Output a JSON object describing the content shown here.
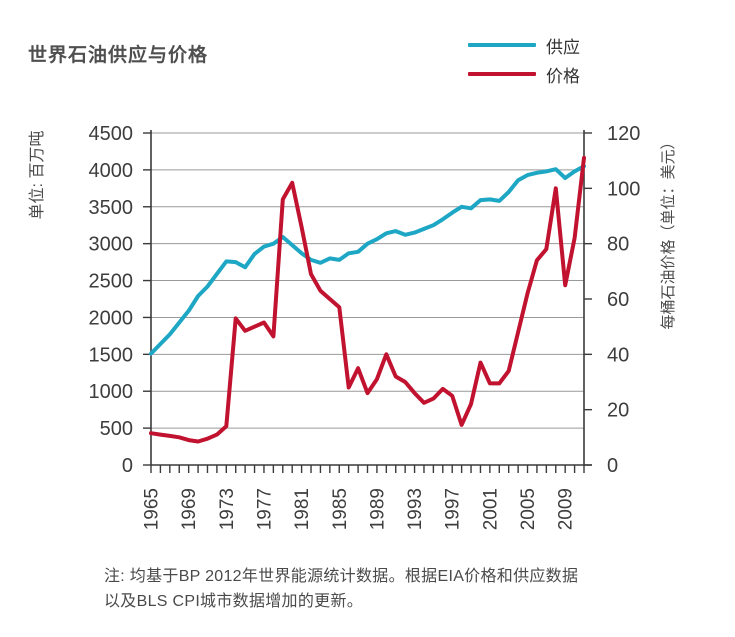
{
  "header": {
    "title": "世界石油供应与价格"
  },
  "legend": {
    "supply": {
      "label": "供应",
      "color": "#1ea7c5"
    },
    "price": {
      "label": "价格",
      "color": "#c1122f"
    }
  },
  "note": {
    "line1": "注: 均基于BP 2012年世界能源统计数据。根据EIA价格和供应数据",
    "line2": "以及BLS CPI城市数据增加的更新。"
  },
  "chart_data": {
    "type": "line",
    "title": "世界石油供应与价格",
    "x": [
      1965,
      1966,
      1967,
      1968,
      1969,
      1970,
      1971,
      1972,
      1973,
      1974,
      1975,
      1976,
      1977,
      1978,
      1979,
      1980,
      1981,
      1982,
      1983,
      1984,
      1985,
      1986,
      1987,
      1988,
      1989,
      1990,
      1991,
      1992,
      1993,
      1994,
      1995,
      1996,
      1997,
      1998,
      1999,
      2000,
      2001,
      2002,
      2003,
      2004,
      2005,
      2006,
      2007,
      2008,
      2009,
      2010,
      2011
    ],
    "series": [
      {
        "name": "供应",
        "axis": "left",
        "unit": "百万吨",
        "color": "#1ea7c5",
        "values": [
          1510,
          1640,
          1770,
          1930,
          2090,
          2290,
          2420,
          2590,
          2760,
          2750,
          2680,
          2860,
          2960,
          3000,
          3090,
          2980,
          2870,
          2780,
          2740,
          2800,
          2780,
          2870,
          2890,
          3000,
          3060,
          3140,
          3170,
          3120,
          3150,
          3200,
          3250,
          3330,
          3420,
          3500,
          3480,
          3590,
          3600,
          3580,
          3700,
          3860,
          3930,
          3960,
          3980,
          4010,
          3890,
          3980,
          4050
        ]
      },
      {
        "name": "价格",
        "axis": "right",
        "unit": "美元/桶",
        "color": "#c1122f",
        "values": [
          11.5,
          11,
          10.5,
          10,
          9,
          8.5,
          9.5,
          11,
          14,
          53,
          48.5,
          50,
          51.5,
          46.5,
          96,
          102,
          86,
          69,
          63,
          60,
          57,
          28,
          35,
          26,
          31,
          40,
          32,
          30,
          26,
          22.5,
          24,
          27.5,
          25,
          14.5,
          22,
          37,
          29.5,
          29.5,
          34,
          48,
          62,
          74,
          78,
          100,
          65,
          82,
          111
        ]
      }
    ],
    "x_axis": {
      "range": [
        1965,
        2011
      ],
      "tick_labels": [
        1965,
        1969,
        1973,
        1977,
        1981,
        1985,
        1989,
        1993,
        1997,
        2001,
        2005,
        2009
      ],
      "minor_tick_step": 1
    },
    "left_axis": {
      "label": "单位: 百万吨",
      "range": [
        0,
        4500
      ],
      "ticks": [
        0,
        500,
        1000,
        1500,
        2000,
        2500,
        3000,
        3500,
        4000,
        4500
      ]
    },
    "right_axis": {
      "label": "每桶石油价格（单位：美元）",
      "range": [
        0,
        120
      ],
      "ticks": [
        0,
        20,
        40,
        60,
        80,
        100,
        120
      ]
    },
    "grid": true,
    "legend_position": "top-right",
    "colors": {
      "grid": "#9a9a9a",
      "axis": "#3a3a3a",
      "text": "#3d3d3d",
      "axis_label": "#4a4a4a"
    }
  }
}
